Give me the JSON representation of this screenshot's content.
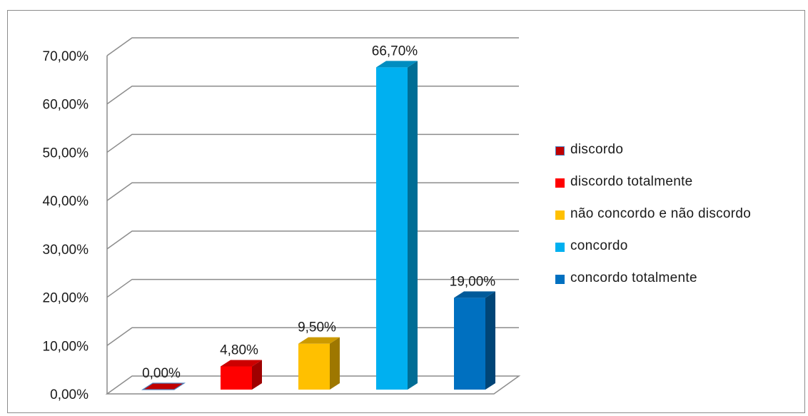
{
  "chart_data": {
    "type": "bar",
    "three_d": true,
    "categories": [
      "discordo",
      "discordo totalmente",
      "não concordo e não discordo",
      "concordo",
      "concordo totalmente"
    ],
    "values": [
      0.0,
      4.8,
      9.5,
      66.7,
      19.0
    ],
    "value_labels": [
      "0,00%",
      "4,80%",
      "9,50%",
      "66,70%",
      "19,00%"
    ],
    "colors": [
      "#c00000",
      "#ff0000",
      "#ffc000",
      "#00b0f0",
      "#0070c0"
    ],
    "ylim": [
      0,
      70
    ],
    "yticks": [
      "0,00%",
      "10,00%",
      "20,00%",
      "30,00%",
      "40,00%",
      "50,00%",
      "60,00%",
      "70,00%"
    ],
    "grid": true,
    "legend_position": "right",
    "title": "",
    "xlabel": "",
    "ylabel": ""
  },
  "legend": [
    {
      "label": "discordo",
      "color": "#c00000",
      "border": "#4f81bd"
    },
    {
      "label": "discordo totalmente",
      "color": "#ff0000"
    },
    {
      "label": "não concordo e não discordo",
      "color": "#ffc000"
    },
    {
      "label": "concordo",
      "color": "#00b0f0"
    },
    {
      "label": "concordo totalmente",
      "color": "#0070c0"
    }
  ]
}
